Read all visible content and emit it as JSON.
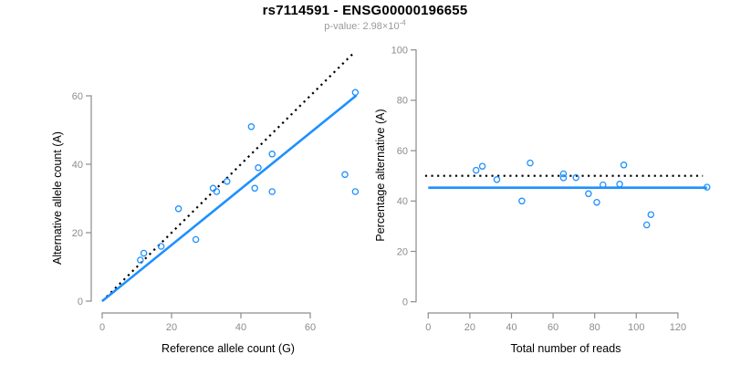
{
  "header": {
    "title": "rs7114591 - ENSG00000196655",
    "pvalue_label": "p-value: 2.98×10",
    "pvalue_exponent": "-4"
  },
  "colors": {
    "accent_blue": "#1E90FF",
    "line_black": "#000000",
    "axis_gray": "#8d8d8d",
    "tick_label_gray": "#8d8d8d",
    "subtitle_gray": "#999999",
    "background": "#ffffff"
  },
  "chart_data": [
    {
      "type": "scatter",
      "name": "allele-count-scatter",
      "xlabel": "Reference allele count (G)",
      "ylabel": "Alternative allele count (A)",
      "xticks": [
        0,
        20,
        40,
        60
      ],
      "yticks": [
        0,
        20,
        40,
        60
      ],
      "xlim": [
        0,
        75
      ],
      "ylim": [
        0,
        73
      ],
      "grid": false,
      "legend": false,
      "point_style": "open-circle",
      "points": [
        [
          11,
          12
        ],
        [
          12,
          14
        ],
        [
          17,
          16
        ],
        [
          22,
          27
        ],
        [
          27,
          18
        ],
        [
          32,
          33
        ],
        [
          33,
          32
        ],
        [
          36,
          35
        ],
        [
          43,
          51
        ],
        [
          44,
          33
        ],
        [
          45,
          39
        ],
        [
          49,
          32
        ],
        [
          49,
          43
        ],
        [
          70,
          37
        ],
        [
          73,
          32
        ],
        [
          73,
          61
        ]
      ],
      "lines": [
        {
          "style": "dotted",
          "color": "#000000",
          "from": [
            0,
            0
          ],
          "to": [
            72.3,
            72.3
          ]
        },
        {
          "style": "solid",
          "color": "#1E90FF",
          "from": [
            0,
            0
          ],
          "to": [
            73.3,
            60.1
          ]
        }
      ]
    },
    {
      "type": "scatter",
      "name": "percentage-vs-reads-scatter",
      "xlabel": "Total number of reads",
      "ylabel": "Percentage alternative (A)",
      "xticks": [
        0,
        20,
        40,
        60,
        80,
        100,
        120
      ],
      "yticks": [
        0,
        20,
        40,
        60,
        80,
        100
      ],
      "xlim": [
        0,
        140
      ],
      "ylim": [
        0,
        100
      ],
      "grid": false,
      "legend": false,
      "point_style": "open-circle",
      "points": [
        [
          23,
          52.2
        ],
        [
          26,
          53.8
        ],
        [
          33,
          48.5
        ],
        [
          45,
          40.0
        ],
        [
          49,
          55.1
        ],
        [
          65,
          50.8
        ],
        [
          65,
          49.2
        ],
        [
          71,
          49.3
        ],
        [
          77,
          42.9
        ],
        [
          81,
          39.5
        ],
        [
          84,
          46.4
        ],
        [
          92,
          46.7
        ],
        [
          94,
          54.3
        ],
        [
          105,
          30.5
        ],
        [
          107,
          34.6
        ],
        [
          134,
          45.5
        ]
      ],
      "lines": [
        {
          "style": "dotted",
          "color": "#000000",
          "from": [
            -1.5,
            50
          ],
          "to": [
            132,
            50
          ]
        },
        {
          "style": "solid",
          "color": "#1E90FF",
          "from": [
            0,
            45.3
          ],
          "to": [
            134,
            45.3
          ]
        }
      ]
    }
  ]
}
